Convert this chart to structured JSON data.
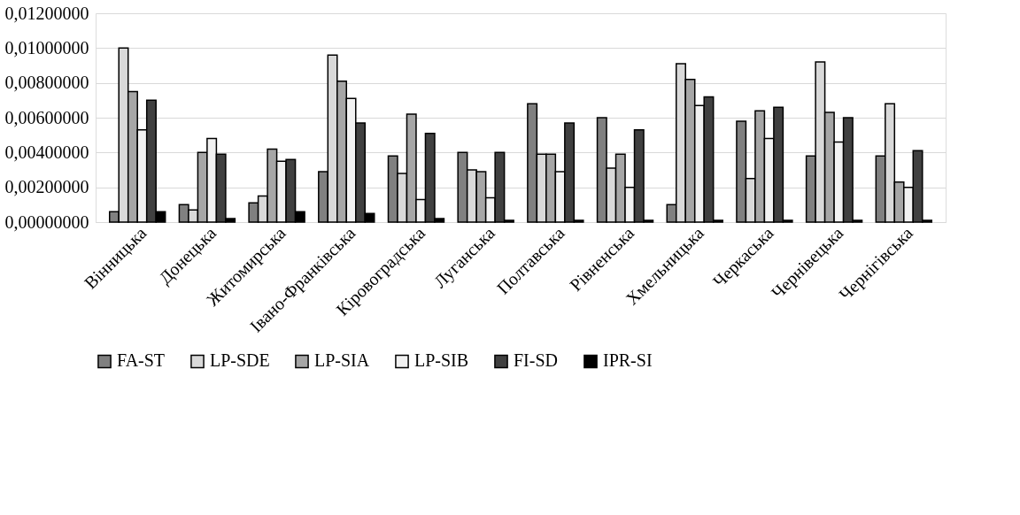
{
  "chart_data": {
    "type": "bar",
    "categories": [
      "Вінницька",
      "Донецька",
      "Житомирська",
      "Івано-Франківська",
      "Кіровоградська",
      "Луганська",
      "Полтавська",
      "Рівненська",
      "Хмельницька",
      "Черкаська",
      "Чернівецька",
      "Чернігівська"
    ],
    "series": [
      {
        "name": "FA-ST",
        "color": "#808080",
        "values": [
          0.0006,
          0.001,
          0.0011,
          0.0029,
          0.0038,
          0.004,
          0.0068,
          0.006,
          0.001,
          0.0058,
          0.0038,
          0.0038
        ]
      },
      {
        "name": "LP-SDE",
        "color": "#d9d9d9",
        "values": [
          0.01,
          0.0007,
          0.0015,
          0.0096,
          0.0028,
          0.003,
          0.0039,
          0.0031,
          0.0091,
          0.0025,
          0.0092,
          0.0068
        ]
      },
      {
        "name": "LP-SIA",
        "color": "#a6a6a6",
        "values": [
          0.0075,
          0.004,
          0.0042,
          0.0081,
          0.0062,
          0.0029,
          0.0039,
          0.0039,
          0.0082,
          0.0064,
          0.0063,
          0.0023
        ]
      },
      {
        "name": "LP-SIB",
        "color": "#f2f2f2",
        "values": [
          0.0053,
          0.0048,
          0.0035,
          0.0071,
          0.0013,
          0.0014,
          0.0029,
          0.002,
          0.0067,
          0.0048,
          0.0046,
          0.002
        ]
      },
      {
        "name": "FI-SD",
        "color": "#404040",
        "values": [
          0.007,
          0.0039,
          0.0036,
          0.0057,
          0.0051,
          0.004,
          0.0057,
          0.0053,
          0.0072,
          0.0066,
          0.006,
          0.0041
        ]
      },
      {
        "name": "IPR-SI",
        "color": "#000000",
        "values": [
          0.0006,
          0.0002,
          0.0006,
          0.0005,
          0.0002,
          0.0001,
          0.0001,
          0.0001,
          0.0001,
          0.0001,
          0.0001,
          0.0001
        ]
      }
    ],
    "ylim": [
      0,
      0.012
    ],
    "yticks": [
      {
        "value": 0,
        "label": "0,00000000"
      },
      {
        "value": 0.002,
        "label": "0,00200000"
      },
      {
        "value": 0.004,
        "label": "0,00400000"
      },
      {
        "value": 0.006,
        "label": "0,00600000"
      },
      {
        "value": 0.008,
        "label": "0,00800000"
      },
      {
        "value": 0.01,
        "label": "0,01000000"
      },
      {
        "value": 0.012,
        "label": "0,01200000"
      }
    ],
    "grid": "y",
    "legend": "bottom"
  }
}
